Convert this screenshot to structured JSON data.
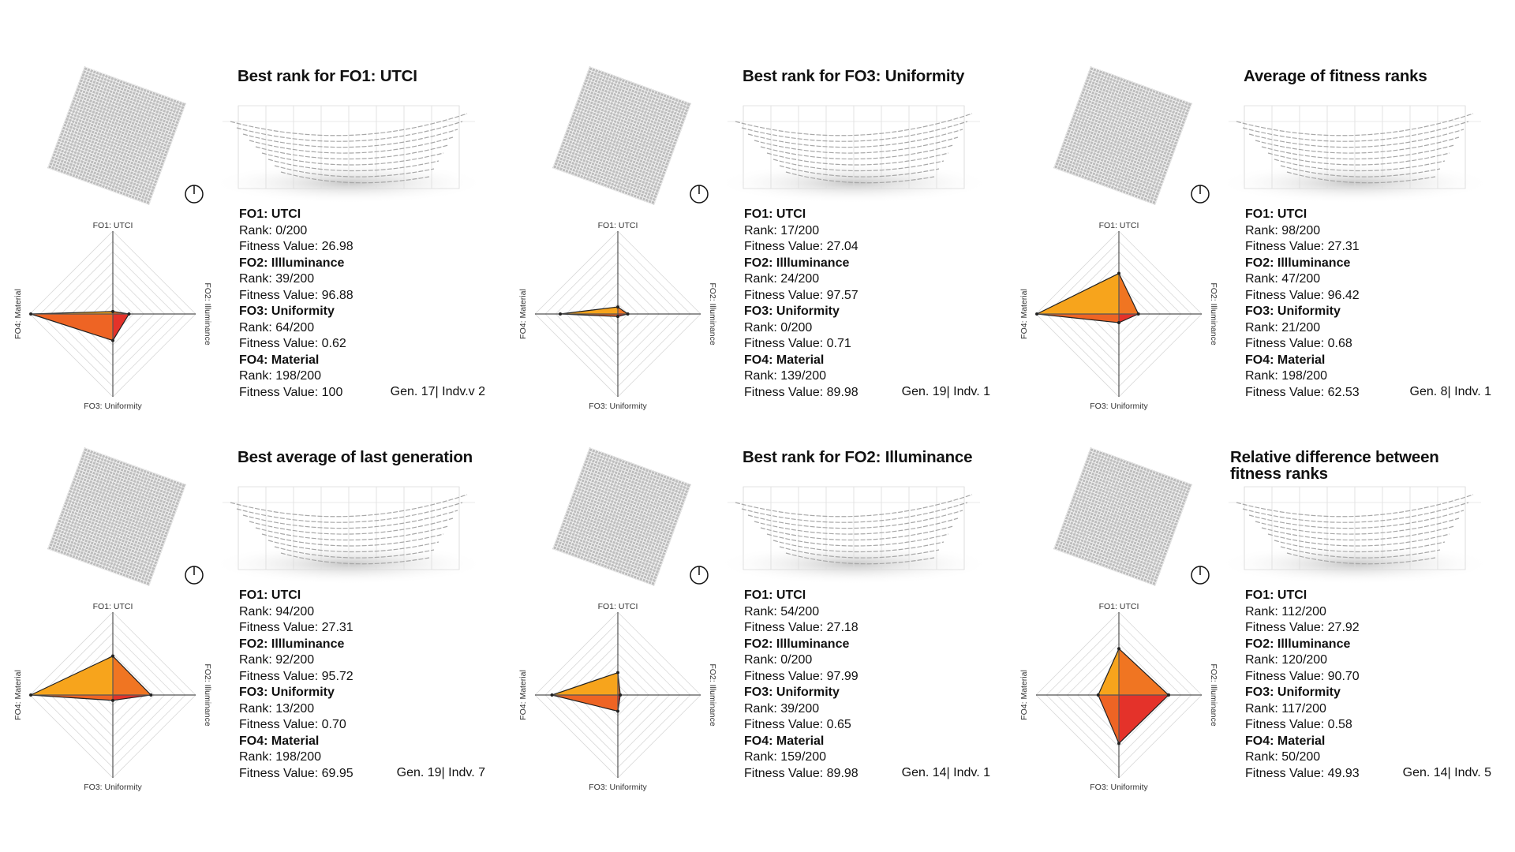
{
  "colors": {
    "q_top_left": "#f7a41c",
    "q_top_right": "#f07522",
    "q_bottom_right": "#e4322a",
    "q_bottom_left": "#ee6424",
    "grid": "#d9d9d9",
    "axis": "#555555"
  },
  "radar_axes": [
    "FO1: UTCI",
    "FO2: Illuminance",
    "FO3: Uniformity",
    "FO4: Material"
  ],
  "rank_total": 200,
  "panels": [
    {
      "title": "Best rank for FO1: UTCI",
      "gen": "Gen. 17| Indv.v 2",
      "objectives": [
        {
          "name": "FO1: UTCI",
          "rank": "Rank: 0/200",
          "fitness": "Fitness Value: 26.98",
          "rank_value": 0
        },
        {
          "name": "FO2: Illluminance",
          "rank": "Rank: 39/200",
          "fitness": "Fitness Value: 96.88",
          "rank_value": 39
        },
        {
          "name": "FO3: Uniformity",
          "rank": "Rank: 64/200",
          "fitness": "Fitness Value: 0.62",
          "rank_value": 64
        },
        {
          "name": "FO4: Material",
          "rank": "Rank: 198/200",
          "fitness": "Fitness Value: 100",
          "rank_value": 198
        }
      ]
    },
    {
      "title": "Best rank for FO3: Uniformity",
      "gen": "Gen. 19| Indv. 1",
      "objectives": [
        {
          "name": "FO1: UTCI",
          "rank": "Rank: 17/200",
          "fitness": "Fitness Value: 27.04",
          "rank_value": 17
        },
        {
          "name": "FO2: Illluminance",
          "rank": "Rank: 24/200",
          "fitness": "Fitness Value: 97.57",
          "rank_value": 24
        },
        {
          "name": "FO3: Uniformity",
          "rank": "Rank: 0/200",
          "fitness": "Fitness Value: 0.71",
          "rank_value": 0
        },
        {
          "name": "FO4: Material",
          "rank": "Rank: 139/200",
          "fitness": "Fitness Value: 89.98",
          "rank_value": 139
        }
      ]
    },
    {
      "title": "Average of fitness ranks",
      "gen": "Gen. 8| Indv. 1",
      "objectives": [
        {
          "name": "FO1: UTCI",
          "rank": "Rank: 98/200",
          "fitness": "Fitness Value: 27.31",
          "rank_value": 98
        },
        {
          "name": "FO2: Illluminance",
          "rank": "Rank: 47/200",
          "fitness": "Fitness Value: 96.42",
          "rank_value": 47
        },
        {
          "name": "FO3: Uniformity",
          "rank": "Rank: 21/200",
          "fitness": "Fitness Value: 0.68",
          "rank_value": 21
        },
        {
          "name": "FO4: Material",
          "rank": "Rank: 198/200",
          "fitness": "Fitness Value: 62.53",
          "rank_value": 198
        }
      ]
    },
    {
      "title": "Best average of last generation",
      "gen": "Gen. 19| Indv. 7",
      "objectives": [
        {
          "name": "FO1: UTCI",
          "rank": "Rank: 94/200",
          "fitness": "Fitness Value: 27.31",
          "rank_value": 94
        },
        {
          "name": "FO2: Illluminance",
          "rank": "Rank: 92/200",
          "fitness": "Fitness Value: 95.72",
          "rank_value": 92
        },
        {
          "name": "FO3: Uniformity",
          "rank": "Rank: 13/200",
          "fitness": "Fitness Value: 0.70",
          "rank_value": 13
        },
        {
          "name": "FO4: Material",
          "rank": "Rank: 198/200",
          "fitness": "Fitness Value: 69.95",
          "rank_value": 198
        }
      ]
    },
    {
      "title": "Best rank for FO2: Illuminance",
      "gen": "Gen. 14| Indv. 1",
      "objectives": [
        {
          "name": "FO1: UTCI",
          "rank": "Rank: 54/200",
          "fitness": "Fitness Value: 27.18",
          "rank_value": 54
        },
        {
          "name": "FO2: Illluminance",
          "rank": "Rank: 0/200",
          "fitness": "Fitness Value: 97.99",
          "rank_value": 0
        },
        {
          "name": "FO3: Uniformity",
          "rank": "Rank: 39/200",
          "fitness": "Fitness Value: 0.65",
          "rank_value": 39
        },
        {
          "name": "FO4: Material",
          "rank": "Rank: 159/200",
          "fitness": "Fitness Value: 89.98",
          "rank_value": 159
        }
      ]
    },
    {
      "title": "Relative difference between fitness ranks",
      "gen": "Gen. 14| Indv. 5",
      "objectives": [
        {
          "name": "FO1: UTCI",
          "rank": "Rank: 112/200",
          "fitness": "Fitness Value: 27.92",
          "rank_value": 112
        },
        {
          "name": "FO2: Illluminance",
          "rank": "Rank: 120/200",
          "fitness": "Fitness Value: 90.70",
          "rank_value": 120
        },
        {
          "name": "FO3: Uniformity",
          "rank": "Rank: 117/200",
          "fitness": "Fitness Value: 0.58",
          "rank_value": 117
        },
        {
          "name": "FO4: Material",
          "rank": "Rank: 50/200",
          "fitness": "Fitness Value: 49.93",
          "rank_value": 50
        }
      ]
    }
  ]
}
